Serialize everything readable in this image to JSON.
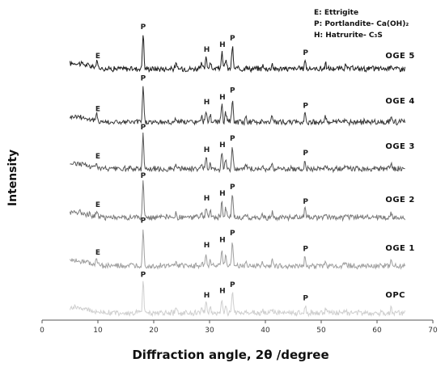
{
  "chart_data": {
    "type": "line",
    "xlabel": "Diffraction angle, 2θ /degree",
    "ylabel": "Intensity",
    "xlim": [
      0,
      70
    ],
    "x_ticks": [
      0,
      10,
      20,
      30,
      40,
      50,
      60,
      70
    ],
    "grid": false,
    "legend": {
      "placement": "top-right",
      "entries": [
        "E: Ettrigite",
        "P: Portlandite- Ca(OH)₂",
        "H: Hatrurite- C₃S"
      ]
    },
    "peaks": [
      {
        "label": "E",
        "x": 10.0
      },
      {
        "label": "P",
        "x": 18.1
      },
      {
        "label": "H",
        "x": 29.5
      },
      {
        "label": "H",
        "x": 32.3
      },
      {
        "label": "P",
        "x": 34.1
      },
      {
        "label": "P",
        "x": 47.2
      }
    ],
    "series": [
      {
        "name": "OGE 5",
        "color": "#1e1e1e",
        "has_ettringite": true
      },
      {
        "name": "OGE 4",
        "color": "#3a3a3a",
        "has_ettringite": true
      },
      {
        "name": "OGE 3",
        "color": "#555555",
        "has_ettringite": true
      },
      {
        "name": "OGE 2",
        "color": "#7a7a7a",
        "has_ettringite": true
      },
      {
        "name": "OGE 1",
        "color": "#a0a0a0",
        "has_ettringite": true
      },
      {
        "name": "OPC",
        "color": "#cfcfcf",
        "has_ettringite": false
      }
    ]
  }
}
